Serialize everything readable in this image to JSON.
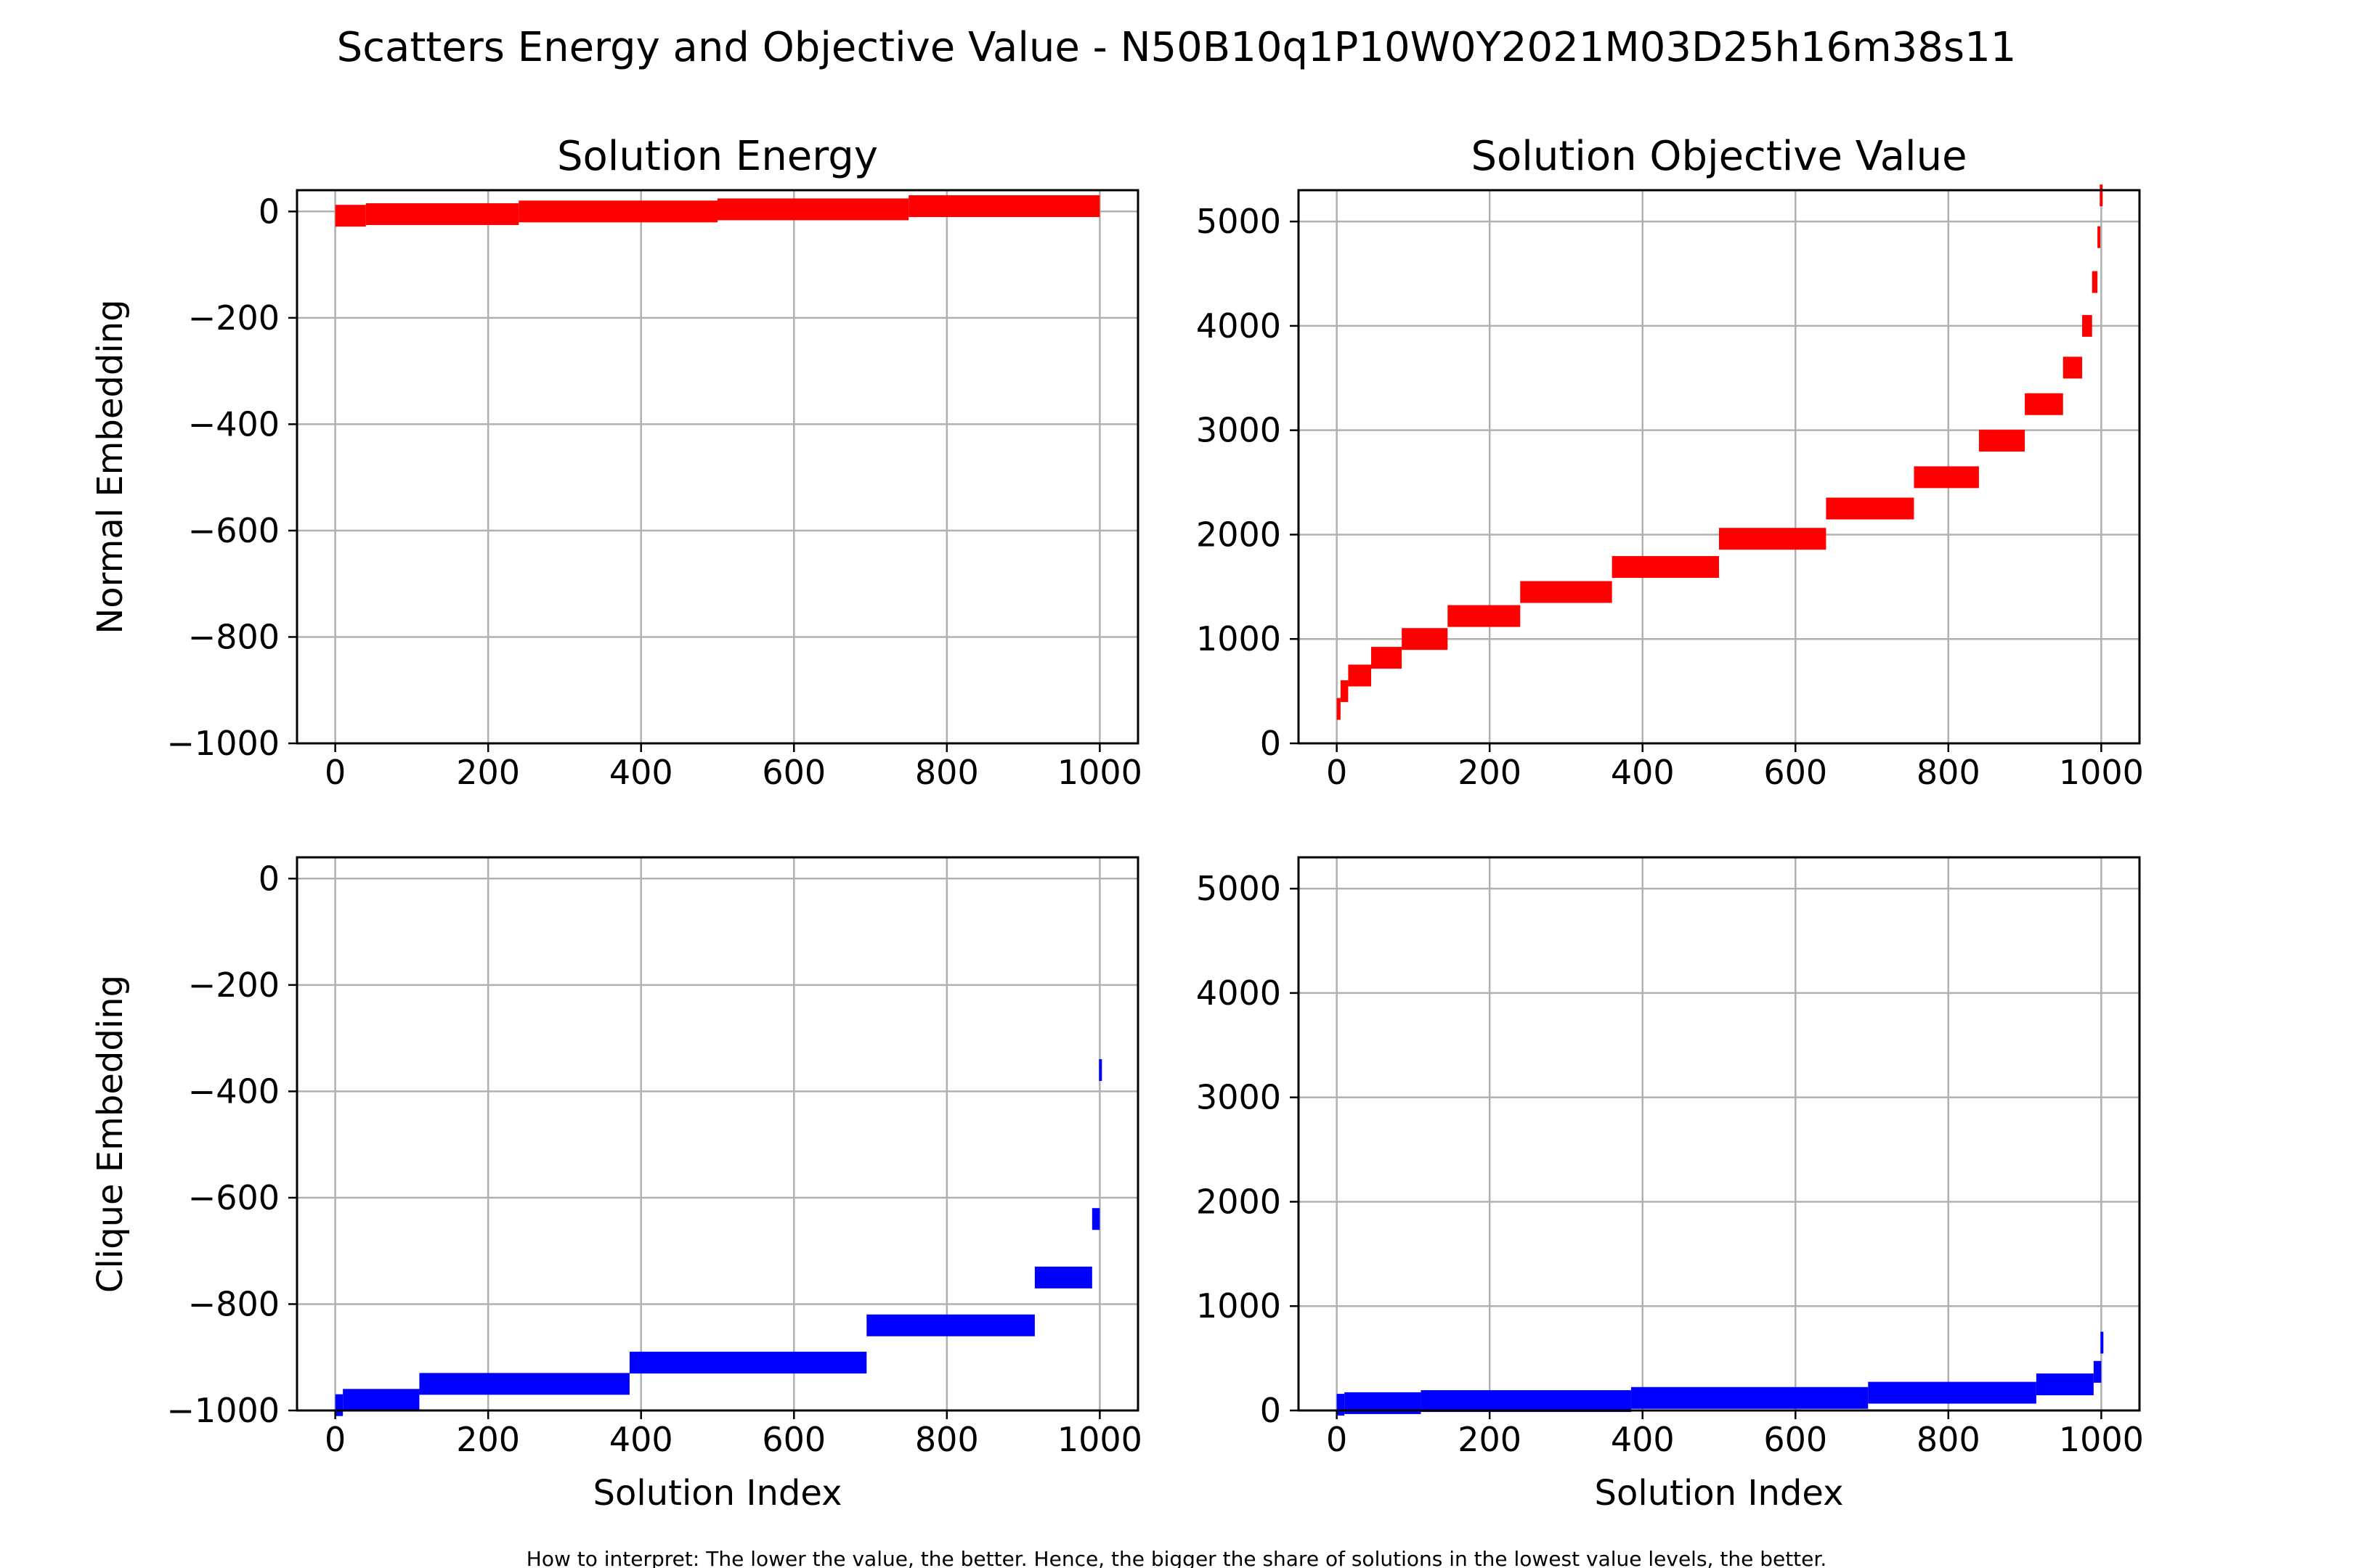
{
  "figure": {
    "suptitle": "Scatters Energy and Objective Value - N50B10q1P10W0Y2021M03D25h16m38s11",
    "footnote": "How to interpret: The lower the value, the better. Hence, the bigger the share of solutions in the lowest value levels, the better."
  },
  "colors": {
    "normal": "#ff0000",
    "clique": "#0000ff",
    "grid": "#b0b0b0",
    "axis": "#000000"
  },
  "chart_data": [
    {
      "id": "energy-normal",
      "type": "scatter",
      "title": "Solution Energy",
      "ylabel": "Normal Embedding",
      "xlabel": "",
      "color": "#ff0000",
      "xlim": [
        -50,
        1050
      ],
      "ylim": [
        -1000,
        40
      ],
      "xticks": [
        0,
        200,
        400,
        600,
        800,
        1000
      ],
      "yticks": [
        -1000,
        -800,
        -600,
        -400,
        -200,
        0
      ],
      "ytick_labels": [
        "−1000",
        "−800",
        "−600",
        "−400",
        "−200",
        "0"
      ],
      "grid": true,
      "segments": [
        {
          "x_start": 0,
          "x_end": 40,
          "y": -8
        },
        {
          "x_start": 40,
          "x_end": 240,
          "y": -5
        },
        {
          "x_start": 240,
          "x_end": 500,
          "y": 0
        },
        {
          "x_start": 500,
          "x_end": 750,
          "y": 4
        },
        {
          "x_start": 750,
          "x_end": 1000,
          "y": 10
        }
      ]
    },
    {
      "id": "objective-normal",
      "type": "scatter",
      "title": "Solution Objective Value",
      "ylabel": "",
      "xlabel": "",
      "color": "#ff0000",
      "xlim": [
        -50,
        1050
      ],
      "ylim": [
        0,
        5300
      ],
      "xticks": [
        0,
        200,
        400,
        600,
        800,
        1000
      ],
      "yticks": [
        0,
        1000,
        2000,
        3000,
        4000,
        5000
      ],
      "ytick_labels": [
        "0",
        "1000",
        "2000",
        "3000",
        "4000",
        "5000"
      ],
      "grid": true,
      "segments": [
        {
          "x_start": 0,
          "x_end": 5,
          "y": 330
        },
        {
          "x_start": 5,
          "x_end": 15,
          "y": 500
        },
        {
          "x_start": 15,
          "x_end": 45,
          "y": 650
        },
        {
          "x_start": 45,
          "x_end": 85,
          "y": 820
        },
        {
          "x_start": 85,
          "x_end": 145,
          "y": 1000
        },
        {
          "x_start": 145,
          "x_end": 240,
          "y": 1220
        },
        {
          "x_start": 240,
          "x_end": 360,
          "y": 1450
        },
        {
          "x_start": 360,
          "x_end": 500,
          "y": 1690
        },
        {
          "x_start": 500,
          "x_end": 640,
          "y": 1960
        },
        {
          "x_start": 640,
          "x_end": 755,
          "y": 2250
        },
        {
          "x_start": 755,
          "x_end": 840,
          "y": 2550
        },
        {
          "x_start": 840,
          "x_end": 900,
          "y": 2900
        },
        {
          "x_start": 900,
          "x_end": 950,
          "y": 3250
        },
        {
          "x_start": 950,
          "x_end": 975,
          "y": 3600
        },
        {
          "x_start": 975,
          "x_end": 988,
          "y": 4000
        },
        {
          "x_start": 988,
          "x_end": 995,
          "y": 4420
        },
        {
          "x_start": 995,
          "x_end": 998,
          "y": 4850
        },
        {
          "x_start": 998,
          "x_end": 1000,
          "y": 5250
        }
      ]
    },
    {
      "id": "energy-clique",
      "type": "scatter",
      "title": "",
      "ylabel": "Clique Embedding",
      "xlabel": "Solution Index",
      "color": "#0000ff",
      "xlim": [
        -50,
        1050
      ],
      "ylim": [
        -1000,
        40
      ],
      "xticks": [
        0,
        200,
        400,
        600,
        800,
        1000
      ],
      "yticks": [
        -1000,
        -800,
        -600,
        -400,
        -200,
        0
      ],
      "ytick_labels": [
        "−1000",
        "−800",
        "−600",
        "−400",
        "−200",
        "0"
      ],
      "grid": true,
      "segments": [
        {
          "x_start": 0,
          "x_end": 10,
          "y": -990
        },
        {
          "x_start": 10,
          "x_end": 110,
          "y": -980
        },
        {
          "x_start": 110,
          "x_end": 385,
          "y": -950
        },
        {
          "x_start": 385,
          "x_end": 695,
          "y": -910
        },
        {
          "x_start": 695,
          "x_end": 915,
          "y": -840
        },
        {
          "x_start": 915,
          "x_end": 990,
          "y": -750
        },
        {
          "x_start": 990,
          "x_end": 1000,
          "y": -640
        },
        {
          "x_start": 999,
          "x_end": 1000,
          "y": -360
        }
      ]
    },
    {
      "id": "objective-clique",
      "type": "scatter",
      "title": "",
      "ylabel": "",
      "xlabel": "Solution Index",
      "color": "#0000ff",
      "xlim": [
        -50,
        1050
      ],
      "ylim": [
        0,
        5300
      ],
      "xticks": [
        0,
        200,
        400,
        600,
        800,
        1000
      ],
      "yticks": [
        0,
        1000,
        2000,
        3000,
        4000,
        5000
      ],
      "ytick_labels": [
        "0",
        "1000",
        "2000",
        "3000",
        "4000",
        "5000"
      ],
      "grid": true,
      "segments": [
        {
          "x_start": 0,
          "x_end": 10,
          "y": 55
        },
        {
          "x_start": 10,
          "x_end": 110,
          "y": 70
        },
        {
          "x_start": 110,
          "x_end": 385,
          "y": 90
        },
        {
          "x_start": 385,
          "x_end": 695,
          "y": 120
        },
        {
          "x_start": 695,
          "x_end": 915,
          "y": 170
        },
        {
          "x_start": 915,
          "x_end": 990,
          "y": 250
        },
        {
          "x_start": 990,
          "x_end": 1000,
          "y": 370
        },
        {
          "x_start": 999,
          "x_end": 1000,
          "y": 650
        }
      ]
    }
  ]
}
